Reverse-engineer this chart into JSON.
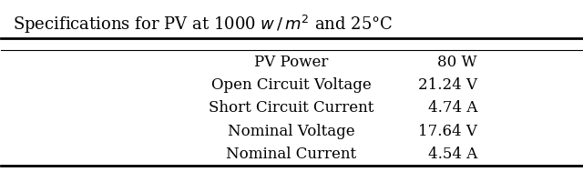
{
  "rows": [
    [
      "PV Power",
      "80 W"
    ],
    [
      "Open Circuit Voltage",
      "21.24 V"
    ],
    [
      "Short Circuit Current",
      "4.74 A"
    ],
    [
      "Nominal Voltage",
      "17.64 V"
    ],
    [
      "Nominal Current",
      "4.54 A"
    ]
  ],
  "bg_color": "#ffffff",
  "text_color": "#000000",
  "title_fontsize": 13,
  "body_fontsize": 12,
  "fig_width": 6.4,
  "fig_height": 1.89
}
